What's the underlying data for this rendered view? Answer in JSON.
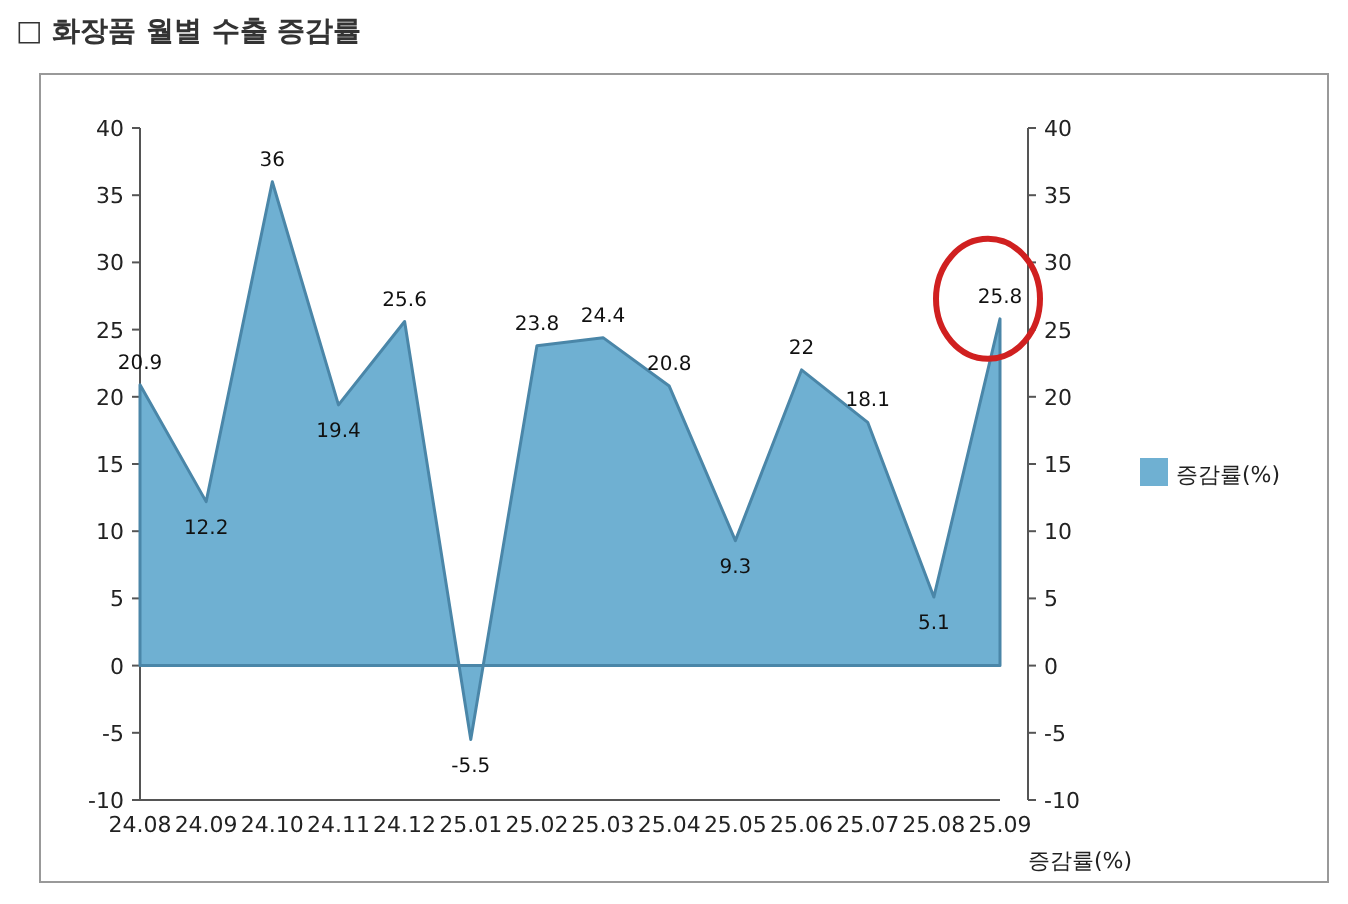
{
  "chart_data": {
    "type": "area",
    "title": "□ 화장품 월별 수출 증감률",
    "xlabel": "증감률(%)",
    "categories": [
      "24.08",
      "24.09",
      "24.10",
      "24.11",
      "24.12",
      "25.01",
      "25.02",
      "25.03",
      "25.04",
      "25.05",
      "25.06",
      "25.07",
      "25.08",
      "25.09"
    ],
    "series": [
      {
        "name": "증감률(%)",
        "color": "#6fb0d2",
        "values": [
          20.9,
          12.2,
          36,
          19.4,
          25.6,
          -5.5,
          23.8,
          24.4,
          20.8,
          9.3,
          22,
          18.1,
          5.1,
          25.8
        ]
      }
    ],
    "ylim": [
      -10,
      40
    ],
    "yticks": [
      -10,
      -5,
      0,
      5,
      10,
      15,
      20,
      25,
      30,
      35,
      40
    ],
    "y2lim": [
      -10,
      40
    ],
    "y2ticks": [
      -10,
      -5,
      0,
      5,
      10,
      15,
      20,
      25,
      30,
      35,
      40
    ],
    "data_labels": true,
    "legend": "right"
  }
}
